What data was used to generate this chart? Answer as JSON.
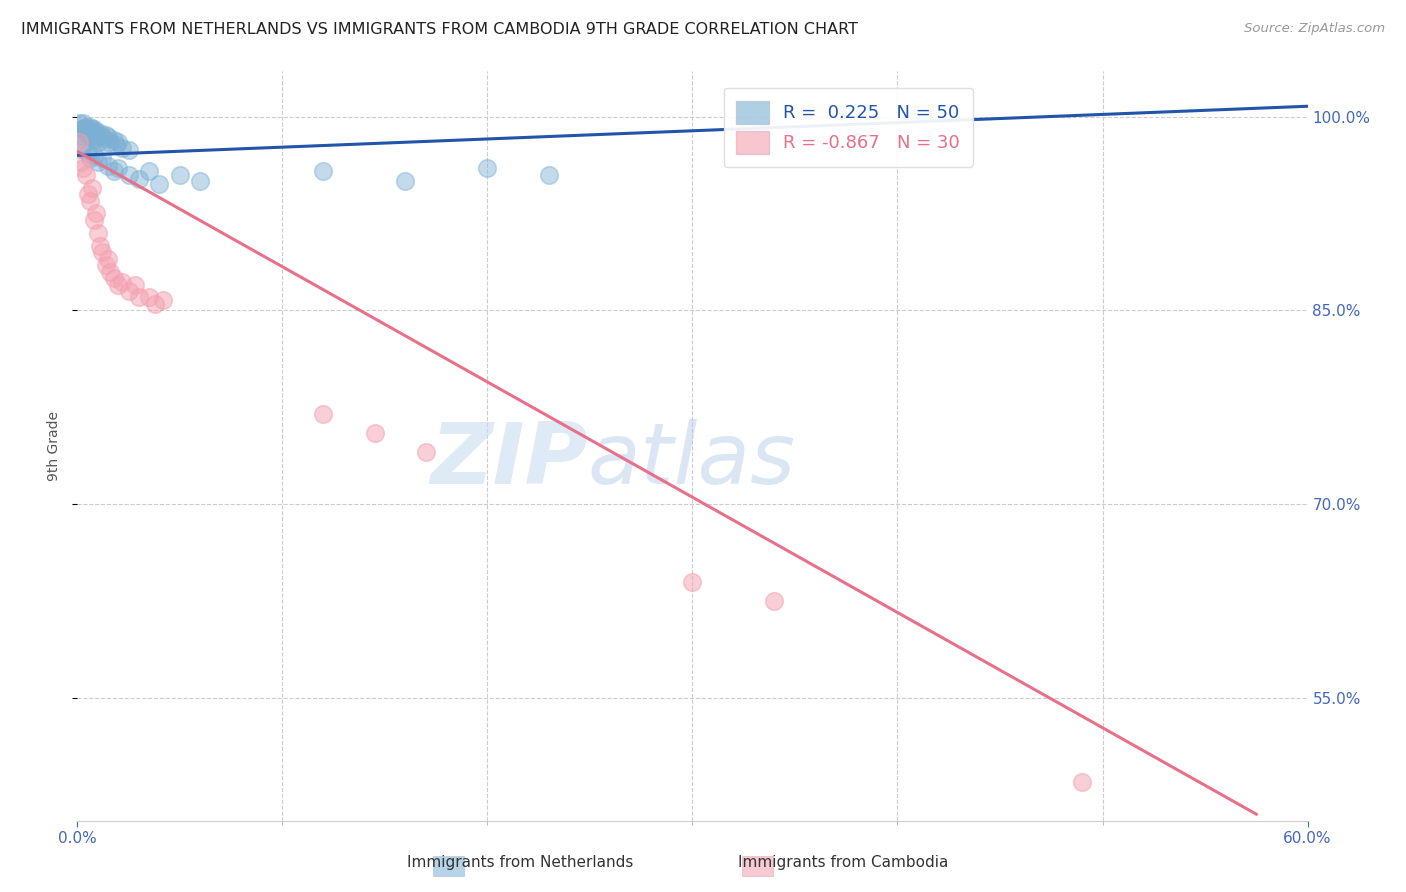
{
  "title": "IMMIGRANTS FROM NETHERLANDS VS IMMIGRANTS FROM CAMBODIA 9TH GRADE CORRELATION CHART",
  "source": "Source: ZipAtlas.com",
  "ylabel_left": "9th Grade",
  "legend_label1": "Immigrants from Netherlands",
  "legend_label2": "Immigrants from Cambodia",
  "R1": 0.225,
  "N1": 50,
  "R2": -0.867,
  "N2": 30,
  "blue_color": "#7BAFD4",
  "pink_color": "#F4A0B0",
  "blue_line_color": "#2255AA",
  "pink_line_color": "#E8708A",
  "xmin": 0.0,
  "xmax": 0.6,
  "ymin": 0.455,
  "ymax": 1.035,
  "ylabel_right_values": [
    1.0,
    0.85,
    0.7,
    0.55
  ],
  "blue_scatter_x": [
    0.001,
    0.002,
    0.002,
    0.003,
    0.003,
    0.004,
    0.004,
    0.005,
    0.005,
    0.006,
    0.006,
    0.007,
    0.007,
    0.008,
    0.008,
    0.009,
    0.009,
    0.01,
    0.01,
    0.011,
    0.012,
    0.013,
    0.014,
    0.015,
    0.016,
    0.018,
    0.019,
    0.02,
    0.022,
    0.025,
    0.002,
    0.003,
    0.005,
    0.006,
    0.008,
    0.01,
    0.012,
    0.015,
    0.018,
    0.02,
    0.025,
    0.03,
    0.035,
    0.04,
    0.05,
    0.06,
    0.12,
    0.16,
    0.2,
    0.23
  ],
  "blue_scatter_y": [
    0.995,
    0.99,
    0.985,
    0.995,
    0.99,
    0.992,
    0.988,
    0.99,
    0.985,
    0.992,
    0.987,
    0.99,
    0.985,
    0.99,
    0.983,
    0.988,
    0.982,
    0.985,
    0.98,
    0.987,
    0.985,
    0.983,
    0.986,
    0.984,
    0.98,
    0.982,
    0.978,
    0.98,
    0.976,
    0.974,
    0.975,
    0.978,
    0.972,
    0.968,
    0.97,
    0.965,
    0.968,
    0.962,
    0.958,
    0.96,
    0.955,
    0.952,
    0.958,
    0.948,
    0.955,
    0.95,
    0.958,
    0.95,
    0.96,
    0.955
  ],
  "pink_scatter_x": [
    0.001,
    0.002,
    0.003,
    0.004,
    0.005,
    0.006,
    0.007,
    0.008,
    0.009,
    0.01,
    0.011,
    0.012,
    0.014,
    0.015,
    0.016,
    0.018,
    0.02,
    0.022,
    0.025,
    0.028,
    0.03,
    0.035,
    0.038,
    0.042,
    0.12,
    0.145,
    0.17,
    0.3,
    0.34,
    0.49
  ],
  "pink_scatter_y": [
    0.98,
    0.965,
    0.96,
    0.955,
    0.94,
    0.935,
    0.945,
    0.92,
    0.925,
    0.91,
    0.9,
    0.895,
    0.885,
    0.89,
    0.88,
    0.875,
    0.87,
    0.872,
    0.865,
    0.87,
    0.86,
    0.86,
    0.855,
    0.858,
    0.77,
    0.755,
    0.74,
    0.64,
    0.625,
    0.485
  ],
  "blue_trendline_x": [
    0.0,
    0.6
  ],
  "blue_trendline_y": [
    0.97,
    1.008
  ],
  "pink_trendline_x": [
    0.0,
    0.575
  ],
  "pink_trendline_y": [
    0.973,
    0.46
  ],
  "watermark_zip": "ZIP",
  "watermark_atlas": "atlas",
  "background_color": "#FFFFFF",
  "grid_color": "#CCCCCC"
}
